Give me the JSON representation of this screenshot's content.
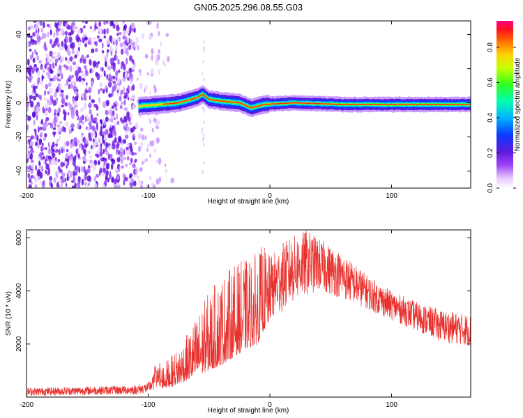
{
  "title": "GN05.2025.296.08.55.G03",
  "chart_data": [
    {
      "type": "heatmap",
      "name": "spectrogram",
      "xlabel": "Height of straight line (km)",
      "ylabel": "Frequency (Hz)",
      "xlim": [
        -200,
        165
      ],
      "ylim": [
        -50,
        48
      ],
      "x_ticks": [
        -200,
        -100,
        0,
        100
      ],
      "y_ticks": [
        -40,
        -20,
        0,
        20,
        40
      ],
      "ridge": {
        "description": "strong narrow ridge near 0 Hz from about -108 km onward",
        "start_km": -108,
        "points": [
          {
            "x": -108,
            "f": -2
          },
          {
            "x": -90,
            "f": -1
          },
          {
            "x": -75,
            "f": 0
          },
          {
            "x": -60,
            "f": 3
          },
          {
            "x": -55,
            "f": 5
          },
          {
            "x": -50,
            "f": 2
          },
          {
            "x": -40,
            "f": 1
          },
          {
            "x": -25,
            "f": 0
          },
          {
            "x": -15,
            "f": -3
          },
          {
            "x": -5,
            "f": -1
          },
          {
            "x": 20,
            "f": 0
          },
          {
            "x": 60,
            "f": -1
          },
          {
            "x": 165,
            "f": -1
          }
        ]
      },
      "noise_region_km": [
        -200,
        -90
      ],
      "colorbar": {
        "label": "Normalized spectral amplitude",
        "range": [
          0.0,
          0.95
        ],
        "ticks": [
          0.0,
          0.2,
          0.4,
          0.6,
          0.8
        ],
        "tick_labels": [
          "0.0",
          "0.2",
          "0.4",
          "0.6",
          "0.8"
        ]
      }
    },
    {
      "type": "line",
      "name": "snr",
      "xlabel": "Height of straight line (km)",
      "ylabel": "SNR (10 * v/v)",
      "xlim": [
        -200,
        165
      ],
      "ylim": [
        0,
        6300
      ],
      "x_ticks": [
        -200,
        -100,
        0,
        100
      ],
      "y_ticks": [
        2000,
        4000,
        6000
      ],
      "series_color": "#e8302c",
      "envelope": {
        "x": [
          -200,
          -150,
          -110,
          -100,
          -92,
          -80,
          -70,
          -60,
          -50,
          -40,
          -30,
          -20,
          -10,
          -5,
          0,
          10,
          20,
          30,
          40,
          60,
          80,
          100,
          120,
          140,
          165
        ],
        "low": [
          50,
          80,
          100,
          150,
          300,
          400,
          600,
          800,
          1000,
          1200,
          1500,
          1800,
          2000,
          2500,
          2800,
          3200,
          3600,
          3800,
          4000,
          3700,
          3300,
          2900,
          2500,
          2100,
          1900
        ],
        "high": [
          350,
          400,
          450,
          550,
          1100,
          1600,
          2200,
          3100,
          4000,
          4600,
          5000,
          5200,
          5500,
          5800,
          5300,
          5800,
          6100,
          6300,
          6000,
          5400,
          4600,
          4000,
          3600,
          3300,
          3100
        ]
      }
    }
  ]
}
